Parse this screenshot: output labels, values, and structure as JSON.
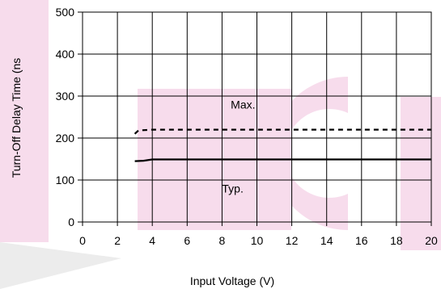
{
  "chart_data": {
    "type": "line",
    "xlabel": "Input  Voltage (V)",
    "ylabel": "Turn-Off Delay Time (ns",
    "xlim": [
      0,
      20
    ],
    "ylim": [
      0,
      500
    ],
    "x_ticks": [
      "0",
      "2",
      "4",
      "6",
      "8",
      "10",
      "12",
      "14",
      "16",
      "18",
      "20"
    ],
    "y_ticks": [
      "0",
      "100",
      "200",
      "300",
      "400",
      "500"
    ],
    "grid": true,
    "series": [
      {
        "name": "Max.",
        "style": "dashed",
        "x": [
          3,
          3.2,
          4,
          6,
          8,
          10,
          12,
          14,
          16,
          18,
          20
        ],
        "y": [
          210,
          218,
          220,
          220,
          220,
          220,
          220,
          220,
          220,
          220,
          220
        ]
      },
      {
        "name": "Typ.",
        "style": "solid",
        "x": [
          3,
          3.5,
          4,
          6,
          8,
          10,
          12,
          14,
          16,
          18,
          20
        ],
        "y": [
          145,
          146,
          149,
          149,
          149,
          149,
          149,
          149,
          149,
          149,
          149
        ]
      }
    ],
    "annotations": [
      {
        "text": "Max.",
        "x": 8.5,
        "y": 270
      },
      {
        "text": "Typ.",
        "x": 8.0,
        "y": 70
      }
    ],
    "colors": {
      "line": "#000000",
      "grid": "#000000",
      "background": "#ffffff",
      "watermark_light": "#f3d3e6",
      "watermark_gray": "#e2e2e2"
    }
  }
}
